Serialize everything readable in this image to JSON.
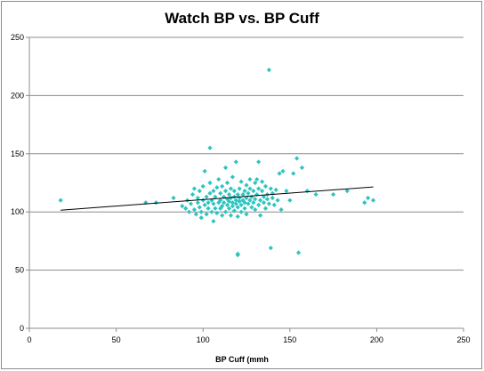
{
  "chart_data": {
    "type": "scatter",
    "title": "Watch BP vs. BP Cuff",
    "xlabel": "BP Cuff  (mmh",
    "ylabel": "",
    "xlim": [
      0,
      250
    ],
    "ylim": [
      0,
      250
    ],
    "xticks": [
      0,
      50,
      100,
      150,
      200,
      250
    ],
    "yticks": [
      0,
      50,
      100,
      150,
      200,
      250
    ],
    "grid": {
      "horizontal": true,
      "vertical": false
    },
    "legend": "none",
    "marker_color": "#2ec4c0",
    "trendline": {
      "type": "linear",
      "x": [
        18,
        198
      ],
      "y": [
        101.5,
        121.5
      ],
      "color": "#000000"
    },
    "series": [
      {
        "points": [
          [
            18,
            110
          ],
          [
            67,
            108
          ],
          [
            73,
            108
          ],
          [
            83,
            112
          ],
          [
            88,
            105
          ],
          [
            90,
            103
          ],
          [
            91,
            110
          ],
          [
            92,
            100
          ],
          [
            93,
            107
          ],
          [
            94,
            115
          ],
          [
            95,
            102
          ],
          [
            95,
            120
          ],
          [
            96,
            98
          ],
          [
            97,
            108
          ],
          [
            97,
            112
          ],
          [
            98,
            104
          ],
          [
            98,
            118
          ],
          [
            99,
            100
          ],
          [
            99,
            95
          ],
          [
            100,
            110
          ],
          [
            100,
            122
          ],
          [
            101,
            106
          ],
          [
            101,
            135
          ],
          [
            102,
            113
          ],
          [
            102,
            98
          ],
          [
            103,
            108
          ],
          [
            103,
            103
          ],
          [
            104,
            116
          ],
          [
            104,
            125
          ],
          [
            104,
            155
          ],
          [
            105,
            100
          ],
          [
            105,
            110
          ],
          [
            106,
            107
          ],
          [
            106,
            118
          ],
          [
            106,
            92
          ],
          [
            107,
            103
          ],
          [
            107,
            113
          ],
          [
            108,
            121
          ],
          [
            108,
            99
          ],
          [
            109,
            108
          ],
          [
            109,
            128
          ],
          [
            110,
            103
          ],
          [
            110,
            110
          ],
          [
            110,
            116
          ],
          [
            111,
            97
          ],
          [
            111,
            105
          ],
          [
            111,
            122
          ],
          [
            112,
            108
          ],
          [
            112,
            113
          ],
          [
            113,
            100
          ],
          [
            113,
            118
          ],
          [
            113,
            138
          ],
          [
            114,
            106
          ],
          [
            114,
            111
          ],
          [
            114,
            125
          ],
          [
            115,
            103
          ],
          [
            115,
            109
          ],
          [
            115,
            115
          ],
          [
            116,
            97
          ],
          [
            116,
            120
          ],
          [
            116,
            112
          ],
          [
            117,
            105
          ],
          [
            117,
            108
          ],
          [
            117,
            130
          ],
          [
            118,
            101
          ],
          [
            118,
            113
          ],
          [
            118,
            118
          ],
          [
            119,
            107
          ],
          [
            119,
            110
          ],
          [
            119,
            143
          ],
          [
            120,
            63
          ],
          [
            120,
            64
          ],
          [
            120,
            96
          ],
          [
            120,
            104
          ],
          [
            120,
            115
          ],
          [
            121,
            109
          ],
          [
            121,
            120
          ],
          [
            121,
            112
          ],
          [
            122,
            100
          ],
          [
            122,
            106
          ],
          [
            122,
            126
          ],
          [
            123,
            110
          ],
          [
            123,
            115
          ],
          [
            124,
            103
          ],
          [
            124,
            118
          ],
          [
            124,
            108
          ],
          [
            125,
            112
          ],
          [
            125,
            123
          ],
          [
            125,
            98
          ],
          [
            126,
            107
          ],
          [
            126,
            116
          ],
          [
            127,
            110
          ],
          [
            127,
            120
          ],
          [
            127,
            128
          ],
          [
            128,
            104
          ],
          [
            128,
            113
          ],
          [
            129,
            118
          ],
          [
            129,
            108
          ],
          [
            130,
            111
          ],
          [
            130,
            125
          ],
          [
            130,
            102
          ],
          [
            131,
            115
          ],
          [
            131,
            128
          ],
          [
            132,
            106
          ],
          [
            132,
            143
          ],
          [
            132,
            120
          ],
          [
            133,
            110
          ],
          [
            133,
            97
          ],
          [
            134,
            118
          ],
          [
            134,
            126
          ],
          [
            135,
            108
          ],
          [
            135,
            113
          ],
          [
            136,
            103
          ],
          [
            136,
            122
          ],
          [
            137,
            111
          ],
          [
            137,
            115
          ],
          [
            138,
            222
          ],
          [
            138,
            107
          ],
          [
            139,
            69
          ],
          [
            139,
            120
          ],
          [
            140,
            112
          ],
          [
            140,
            116
          ],
          [
            141,
            106
          ],
          [
            142,
            119
          ],
          [
            143,
            110
          ],
          [
            144,
            133
          ],
          [
            145,
            102
          ],
          [
            146,
            135
          ],
          [
            148,
            118
          ],
          [
            150,
            110
          ],
          [
            152,
            133
          ],
          [
            154,
            146
          ],
          [
            155,
            65
          ],
          [
            157,
            138
          ],
          [
            160,
            118
          ],
          [
            165,
            115
          ],
          [
            175,
            115
          ],
          [
            183,
            118
          ],
          [
            193,
            108
          ],
          [
            195,
            112
          ],
          [
            198,
            110
          ]
        ]
      }
    ]
  }
}
